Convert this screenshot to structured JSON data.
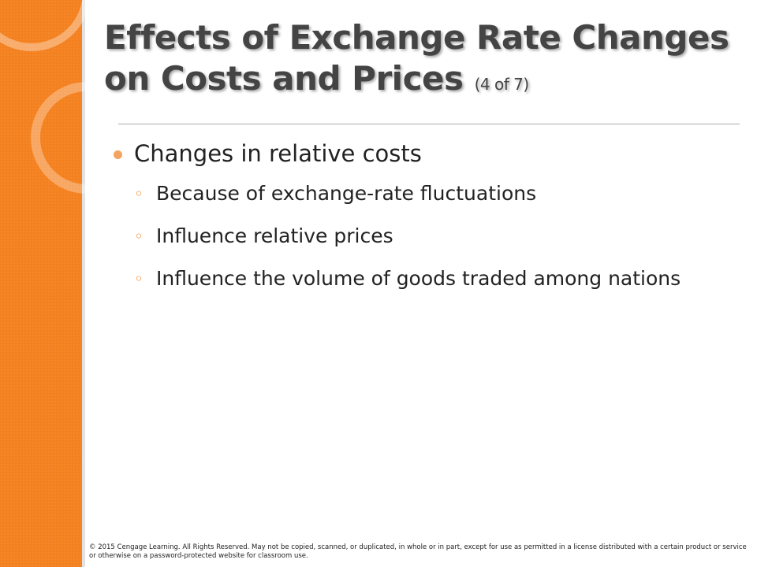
{
  "slide": {
    "title_lines": [
      "Effects of Exchange Rate Changes",
      "on Costs and Prices"
    ],
    "title_suffix": "(4 of 7)",
    "bullets": [
      {
        "text": "Changes in relative costs",
        "sub": [
          "Because of exchange-rate fluctuations",
          "Influence relative prices",
          "Influence the volume of goods traded among nations"
        ]
      }
    ],
    "footer": "© 2015 Cengage Learning. All Rights Reserved. May not be copied, scanned, or duplicated, in whole or in part, except for use as permitted in a license distributed with a certain product or service or otherwise on a password-protected website for classroom use."
  }
}
